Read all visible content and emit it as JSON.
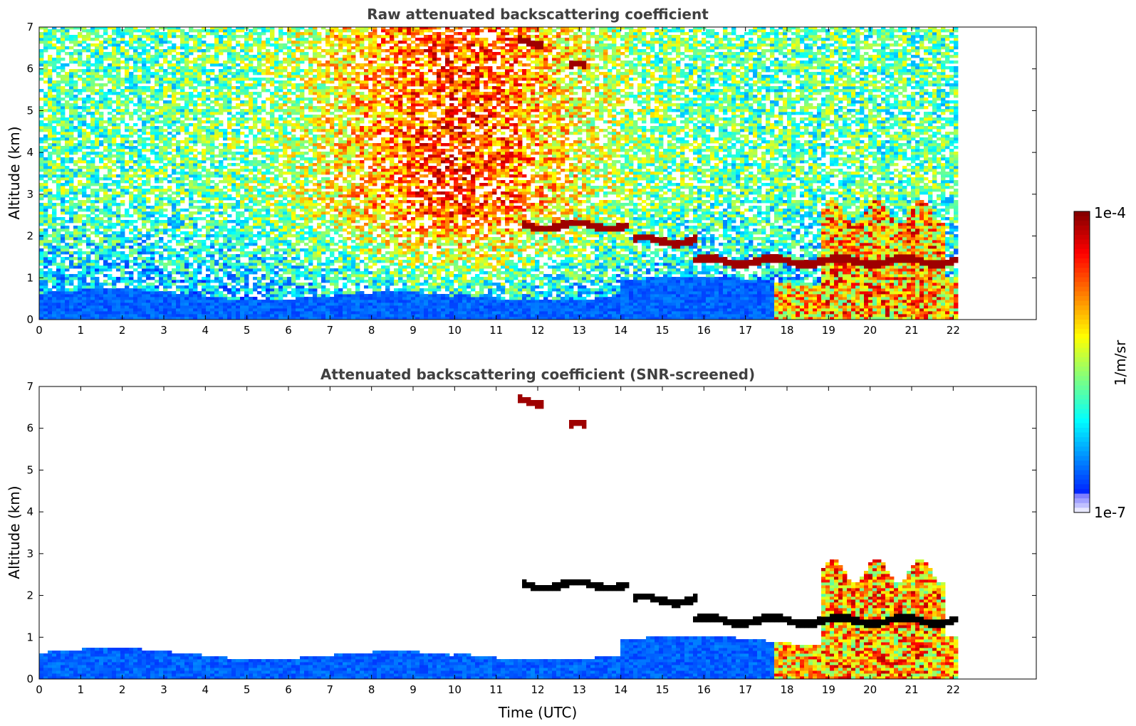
{
  "chart_data": [
    {
      "type": "heatmap",
      "title": "Raw attenuated backscattering coefficient",
      "xlabel": "",
      "ylabel": "Altitude (km)",
      "xlim": [
        0,
        24
      ],
      "ylim": [
        0,
        7
      ],
      "xticks": [
        "0",
        "1",
        "2",
        "3",
        "4",
        "5",
        "6",
        "7",
        "8",
        "9",
        "10",
        "11",
        "12",
        "13",
        "14",
        "15",
        "16",
        "17",
        "18",
        "19",
        "20",
        "21",
        "22"
      ],
      "yticks": [
        "0",
        "1",
        "2",
        "3",
        "4",
        "5",
        "6",
        "7"
      ],
      "data_end_time": 22.15,
      "colorscale": "jet",
      "features": {
        "aerosol_layer_top_km": 1.0,
        "cloud_layers": [
          {
            "t_start": 11.5,
            "t_end": 12.1,
            "altitude_km": 6.65
          },
          {
            "t_start": 12.75,
            "t_end": 13.2,
            "altitude_km": 6.05
          },
          {
            "t_start": 11.6,
            "t_end": 14.2,
            "altitude_km": 2.25
          },
          {
            "t_start": 14.3,
            "t_end": 15.8,
            "altitude_km": 1.9
          },
          {
            "t_start": 15.7,
            "t_end": 22.15,
            "altitude_km": 1.4
          }
        ]
      }
    },
    {
      "type": "heatmap",
      "title": "Attenuated backscattering coefficient (SNR-screened)",
      "xlabel": "Time (UTC)",
      "ylabel": "Altitude (km)",
      "xlim": [
        0,
        24
      ],
      "ylim": [
        0,
        7
      ],
      "xticks": [
        "0",
        "1",
        "2",
        "3",
        "4",
        "5",
        "6",
        "7",
        "8",
        "9",
        "10",
        "11",
        "12",
        "13",
        "14",
        "15",
        "16",
        "17",
        "18",
        "19",
        "20",
        "21",
        "22"
      ],
      "yticks": [
        "0",
        "1",
        "2",
        "3",
        "4",
        "5",
        "6",
        "7"
      ],
      "data_end_time": 22.15,
      "colorscale": "jet"
    }
  ],
  "colorbar": {
    "max_label": "1e-4",
    "min_label": "1e-7",
    "unit": "1/m/sr",
    "scale": "log",
    "range": [
      1e-07,
      0.0001
    ]
  }
}
